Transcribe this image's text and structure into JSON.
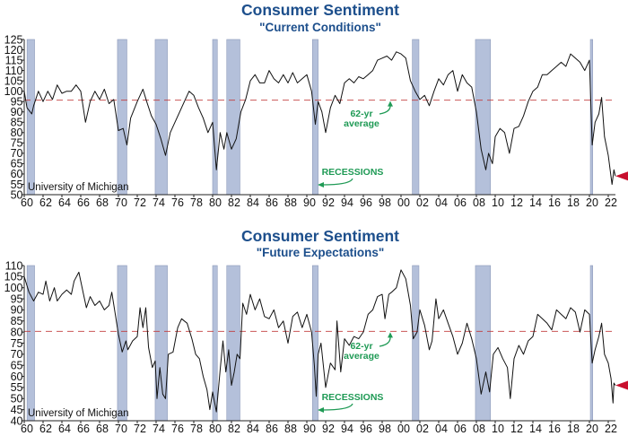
{
  "colors": {
    "title": "#1d4f8c",
    "recession": "#b4c0da",
    "average_line": "#c23a3a",
    "annotation": "#1f9a55",
    "line": "#111111",
    "latest_arrow": "#c8102e"
  },
  "chart_data": [
    {
      "type": "line",
      "title": "Consumer Sentiment",
      "subtitle": "\"Current Conditions\"",
      "source": "University of Michigan",
      "average_label": [
        "62-yr",
        "average"
      ],
      "recession_label": "RECESSIONS",
      "grid": false,
      "legend": "none",
      "ylim": [
        50,
        125
      ],
      "yticks": [
        50,
        55,
        60,
        65,
        70,
        75,
        80,
        85,
        90,
        95,
        100,
        105,
        110,
        115,
        120,
        125
      ],
      "xlim": [
        1960,
        2022.8
      ],
      "xticks": [
        "60",
        "62",
        "64",
        "66",
        "68",
        "70",
        "72",
        "74",
        "76",
        "78",
        "80",
        "82",
        "84",
        "86",
        "88",
        "90",
        "92",
        "94",
        "96",
        "98",
        "00",
        "02",
        "04",
        "06",
        "08",
        "10",
        "12",
        "14",
        "16",
        "18",
        "20",
        "22"
      ],
      "average": 95.7,
      "latest": 59,
      "recessions": [
        [
          1960.3,
          1961.1
        ],
        [
          1969.9,
          1970.9
        ],
        [
          1973.9,
          1975.2
        ],
        [
          1980.0,
          1980.5
        ],
        [
          1981.5,
          1982.9
        ],
        [
          1990.6,
          1991.2
        ],
        [
          2001.2,
          2001.9
        ],
        [
          2007.9,
          2009.5
        ],
        [
          2020.1,
          2020.35
        ]
      ],
      "series": [
        {
          "x": [
            1960,
            1960.3,
            1960.8,
            1961,
            1961.5,
            1962,
            1962.5,
            1963,
            1963.5,
            1964,
            1964.5,
            1965,
            1965.5,
            1966,
            1966.5,
            1967,
            1967.5,
            1968,
            1968.5,
            1969,
            1969.5,
            1970,
            1970.5,
            1970.9,
            1971.3,
            1972,
            1972.6,
            1973,
            1973.5,
            1974,
            1974.5,
            1975,
            1975.5,
            1976,
            1976.5,
            1977,
            1977.5,
            1978,
            1978.5,
            1979,
            1979.5,
            1980,
            1980.4,
            1980.8,
            1981.2,
            1981.5,
            1982,
            1982.5,
            1983,
            1983.5,
            1984,
            1984.5,
            1985,
            1985.5,
            1986,
            1986.5,
            1987,
            1987.5,
            1988,
            1988.5,
            1989,
            1989.5,
            1990,
            1990.5,
            1990.9,
            1991.2,
            1991.6,
            1992,
            1992.5,
            1993,
            1993.5,
            1994,
            1994.5,
            1995,
            1995.5,
            1996,
            1996.5,
            1997,
            1997.5,
            1998,
            1998.5,
            1999,
            1999.5,
            2000,
            2000.5,
            2001,
            2001.5,
            2002,
            2002.5,
            2003,
            2003.5,
            2004,
            2004.5,
            2005,
            2005.5,
            2006,
            2006.5,
            2007,
            2007.5,
            2008,
            2008.5,
            2009,
            2009.3,
            2009.7,
            2010,
            2010.5,
            2011,
            2011.5,
            2012,
            2012.5,
            2013,
            2013.5,
            2014,
            2014.5,
            2015,
            2015.5,
            2016,
            2016.5,
            2017,
            2017.5,
            2018,
            2018.5,
            2019,
            2019.5,
            2020,
            2020.3,
            2020.6,
            2021,
            2021.3,
            2021.6,
            2022,
            2022.4,
            2022.6,
            2022.75
          ],
          "y": [
            100,
            92,
            89,
            93,
            100,
            95,
            100,
            96,
            103,
            99,
            100,
            100,
            103,
            100,
            85,
            95,
            100,
            96,
            101,
            94,
            96,
            81,
            82,
            74,
            87,
            95,
            101,
            95,
            88,
            84,
            77,
            69,
            80,
            85,
            90,
            95,
            100,
            98,
            92,
            87,
            80,
            85,
            62,
            80,
            72,
            80,
            72,
            77,
            90,
            96,
            105,
            108,
            104,
            104,
            110,
            106,
            104,
            108,
            104,
            109,
            104,
            106,
            108,
            100,
            84,
            95,
            90,
            80,
            92,
            98,
            94,
            104,
            106,
            104,
            107,
            106,
            108,
            110,
            115,
            116,
            117,
            115,
            119,
            118,
            116,
            105,
            100,
            96,
            98,
            93,
            100,
            106,
            103,
            108,
            110,
            100,
            108,
            104,
            102,
            90,
            72,
            62,
            70,
            65,
            78,
            82,
            80,
            70,
            82,
            83,
            88,
            95,
            100,
            102,
            108,
            108,
            110,
            112,
            114,
            112,
            118,
            116,
            114,
            110,
            115,
            74,
            85,
            89,
            97,
            78,
            69,
            55,
            62,
            59
          ]
        }
      ]
    },
    {
      "type": "line",
      "title": "Consumer Sentiment",
      "subtitle": "\"Future Expectations\"",
      "source": "University of Michigan",
      "average_label": [
        "62-yr",
        "average"
      ],
      "recession_label": "RECESSIONS",
      "grid": false,
      "legend": "none",
      "ylim": [
        40,
        110
      ],
      "yticks": [
        40,
        45,
        50,
        55,
        60,
        65,
        70,
        75,
        80,
        85,
        90,
        95,
        100,
        105,
        110
      ],
      "xlim": [
        1960,
        2022.8
      ],
      "xticks": [
        "60",
        "62",
        "64",
        "66",
        "68",
        "70",
        "72",
        "74",
        "76",
        "78",
        "80",
        "82",
        "84",
        "86",
        "88",
        "90",
        "92",
        "94",
        "96",
        "98",
        "00",
        "02",
        "04",
        "06",
        "08",
        "10",
        "12",
        "14",
        "16",
        "18",
        "20",
        "22"
      ],
      "average": 80.3,
      "latest": 56,
      "recessions": [
        [
          1960.3,
          1961.1
        ],
        [
          1969.9,
          1970.9
        ],
        [
          1973.9,
          1975.2
        ],
        [
          1980.0,
          1980.5
        ],
        [
          1981.5,
          1982.9
        ],
        [
          1990.6,
          1991.2
        ],
        [
          2001.2,
          2001.9
        ],
        [
          2007.9,
          2009.5
        ],
        [
          2020.1,
          2020.35
        ]
      ],
      "series": [
        {
          "x": [
            1960,
            1960.5,
            1961,
            1961.5,
            1962,
            1962.3,
            1962.7,
            1963.2,
            1963.5,
            1964,
            1964.5,
            1965,
            1965.3,
            1965.8,
            1966.3,
            1966.6,
            1967,
            1967.5,
            1968,
            1968.5,
            1969,
            1969.3,
            1969.7,
            1970,
            1970.4,
            1970.8,
            1971,
            1971.5,
            1972,
            1972.3,
            1972.6,
            1972.9,
            1973.2,
            1973.6,
            1973.9,
            1974.1,
            1974.4,
            1974.7,
            1975,
            1975.3,
            1975.8,
            1976.3,
            1976.7,
            1977.3,
            1977.8,
            1978.2,
            1978.6,
            1979,
            1979.4,
            1979.7,
            1980,
            1980.4,
            1980.8,
            1981.1,
            1981.4,
            1981.7,
            1982,
            1982.3,
            1982.6,
            1982.9,
            1983.2,
            1983.6,
            1984,
            1984.5,
            1985,
            1985.5,
            1986,
            1986.5,
            1987,
            1987.5,
            1988,
            1988.5,
            1989,
            1989.5,
            1990,
            1990.5,
            1990.8,
            1991,
            1991.2,
            1991.5,
            1992,
            1992.5,
            1993,
            1993.2,
            1993.6,
            1994,
            1994.5,
            1995,
            1995.5,
            1996,
            1996.5,
            1997,
            1997.5,
            1998,
            1998.3,
            1998.7,
            1999,
            1999.5,
            2000,
            2000.5,
            2001,
            2001.3,
            2001.7,
            2002,
            2002.5,
            2003,
            2003.3,
            2003.7,
            2004,
            2004.5,
            2005,
            2005.5,
            2006,
            2006.5,
            2007,
            2007.5,
            2008,
            2008.5,
            2009,
            2009.4,
            2009.8,
            2010.3,
            2010.8,
            2011.3,
            2011.6,
            2012,
            2012.5,
            2013,
            2013.5,
            2014,
            2014.5,
            2015,
            2015.5,
            2016,
            2016.5,
            2017,
            2017.5,
            2018,
            2018.5,
            2019,
            2019.5,
            2020,
            2020.3,
            2020.6,
            2021,
            2021.3,
            2021.6,
            2022,
            2022.3,
            2022.5,
            2022.6,
            2022.75
          ],
          "y": [
            105,
            98,
            94,
            98,
            97,
            103,
            94,
            100,
            94,
            97,
            99,
            97,
            103,
            107,
            97,
            91,
            96,
            92,
            94,
            90,
            92,
            98,
            87,
            79,
            71,
            76,
            72,
            76,
            78,
            91,
            82,
            91,
            73,
            64,
            67,
            50,
            64,
            52,
            50,
            70,
            71,
            82,
            86,
            84,
            77,
            70,
            68,
            60,
            54,
            45,
            53,
            44,
            63,
            76,
            62,
            72,
            56,
            62,
            70,
            68,
            93,
            88,
            97,
            90,
            95,
            87,
            86,
            90,
            82,
            85,
            75,
            87,
            89,
            82,
            88,
            80,
            65,
            51,
            70,
            75,
            55,
            66,
            63,
            85,
            62,
            77,
            74,
            78,
            77,
            80,
            88,
            90,
            96,
            97,
            86,
            97,
            98,
            100,
            108,
            104,
            92,
            77,
            80,
            90,
            83,
            72,
            76,
            95,
            86,
            90,
            84,
            78,
            70,
            75,
            84,
            77,
            68,
            52,
            62,
            53,
            70,
            73,
            68,
            64,
            50,
            68,
            74,
            70,
            76,
            78,
            88,
            86,
            84,
            81,
            90,
            88,
            86,
            91,
            89,
            80,
            90,
            88,
            66,
            72,
            78,
            84,
            70,
            66,
            59,
            48,
            57,
            56
          ]
        }
      ]
    }
  ]
}
